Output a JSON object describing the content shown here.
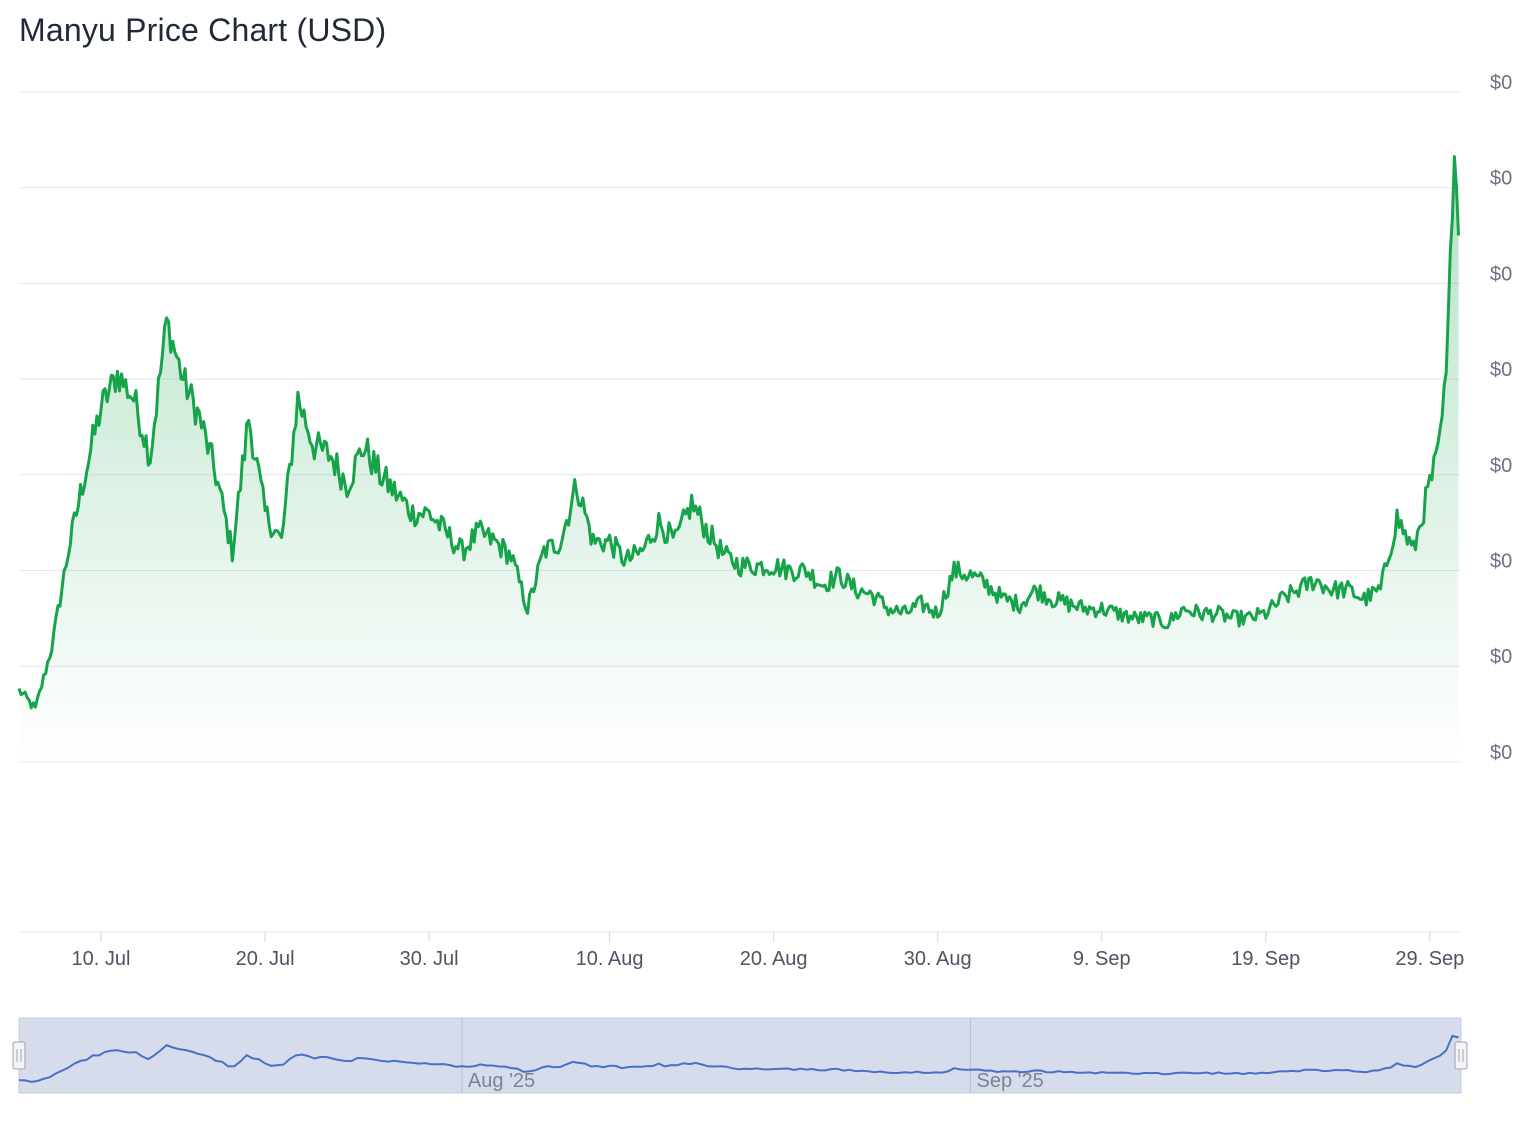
{
  "title": "Manyu Price Chart (USD)",
  "colors": {
    "line": "#16a34a",
    "area_top": "#16a34a",
    "grid": "#e5e7eb",
    "navigator_fill": "#d6dcec",
    "navigator_line": "#4a6fc7",
    "navigator_border": "#c5cbe0"
  },
  "chart_data": {
    "type": "area",
    "title": "Manyu Price Chart (USD)",
    "xlabel": "",
    "ylabel": "",
    "x_range": [
      "2025-07-05",
      "2025-09-30"
    ],
    "x_ticks": [
      "10. Jul",
      "20. Jul",
      "30. Jul",
      "10. Aug",
      "20. Aug",
      "30. Aug",
      "9. Sep",
      "19. Sep",
      "29. Sep"
    ],
    "y_ticks": [
      "$0",
      "$0",
      "$0",
      "$0",
      "$0",
      "$0",
      "$0",
      "$0"
    ],
    "y_scale": "relative (tick values printed as $0)",
    "ylim": [
      0,
      7
    ],
    "grid": true,
    "legend": "none",
    "series": [
      {
        "values_note": "values in units of one y-grid step (bottom gridline = 0)",
        "points": [
          [
            "2025-07-05",
            0.75
          ],
          [
            "2025-07-06",
            0.55
          ],
          [
            "2025-07-07",
            1.2
          ],
          [
            "2025-07-08",
            2.2
          ],
          [
            "2025-07-09",
            3.0
          ],
          [
            "2025-07-10",
            3.7
          ],
          [
            "2025-07-11",
            4.05
          ],
          [
            "2025-07-12",
            3.8
          ],
          [
            "2025-07-13",
            3.2
          ],
          [
            "2025-07-14",
            4.6
          ],
          [
            "2025-07-15",
            4.0
          ],
          [
            "2025-07-16",
            3.6
          ],
          [
            "2025-07-17",
            3.0
          ],
          [
            "2025-07-18",
            2.2
          ],
          [
            "2025-07-19",
            3.6
          ],
          [
            "2025-07-20",
            2.6
          ],
          [
            "2025-07-21",
            2.3
          ],
          [
            "2025-07-22",
            3.8
          ],
          [
            "2025-07-23",
            3.3
          ],
          [
            "2025-07-24",
            3.2
          ],
          [
            "2025-07-25",
            2.9
          ],
          [
            "2025-07-26",
            3.3
          ],
          [
            "2025-07-27",
            3.0
          ],
          [
            "2025-07-28",
            2.8
          ],
          [
            "2025-07-29",
            2.6
          ],
          [
            "2025-07-30",
            2.6
          ],
          [
            "2025-07-31",
            2.4
          ],
          [
            "2025-08-01",
            2.2
          ],
          [
            "2025-08-02",
            2.4
          ],
          [
            "2025-08-03",
            2.3
          ],
          [
            "2025-08-04",
            2.15
          ],
          [
            "2025-08-05",
            1.6
          ],
          [
            "2025-08-06",
            2.2
          ],
          [
            "2025-08-07",
            2.3
          ],
          [
            "2025-08-08",
            2.9
          ],
          [
            "2025-08-09",
            2.3
          ],
          [
            "2025-08-10",
            2.3
          ],
          [
            "2025-08-11",
            2.1
          ],
          [
            "2025-08-12",
            2.2
          ],
          [
            "2025-08-13",
            2.5
          ],
          [
            "2025-08-14",
            2.3
          ],
          [
            "2025-08-15",
            2.7
          ],
          [
            "2025-08-16",
            2.4
          ],
          [
            "2025-08-17",
            2.15
          ],
          [
            "2025-08-18",
            2.05
          ],
          [
            "2025-08-19",
            2.05
          ],
          [
            "2025-08-20",
            2.05
          ],
          [
            "2025-08-21",
            2.0
          ],
          [
            "2025-08-22",
            2.0
          ],
          [
            "2025-08-23",
            1.85
          ],
          [
            "2025-08-24",
            1.95
          ],
          [
            "2025-08-25",
            1.8
          ],
          [
            "2025-08-26",
            1.75
          ],
          [
            "2025-08-27",
            1.6
          ],
          [
            "2025-08-28",
            1.55
          ],
          [
            "2025-08-29",
            1.65
          ],
          [
            "2025-08-30",
            1.55
          ],
          [
            "2025-08-31",
            2.0
          ],
          [
            "2025-09-01",
            1.95
          ],
          [
            "2025-09-02",
            1.85
          ],
          [
            "2025-09-03",
            1.7
          ],
          [
            "2025-09-04",
            1.65
          ],
          [
            "2025-09-05",
            1.8
          ],
          [
            "2025-09-06",
            1.7
          ],
          [
            "2025-09-07",
            1.65
          ],
          [
            "2025-09-08",
            1.6
          ],
          [
            "2025-09-09",
            1.6
          ],
          [
            "2025-09-10",
            1.55
          ],
          [
            "2025-09-11",
            1.5
          ],
          [
            "2025-09-12",
            1.5
          ],
          [
            "2025-09-13",
            1.45
          ],
          [
            "2025-09-14",
            1.6
          ],
          [
            "2025-09-15",
            1.55
          ],
          [
            "2025-09-16",
            1.55
          ],
          [
            "2025-09-17",
            1.5
          ],
          [
            "2025-09-18",
            1.5
          ],
          [
            "2025-09-19",
            1.55
          ],
          [
            "2025-09-20",
            1.7
          ],
          [
            "2025-09-21",
            1.8
          ],
          [
            "2025-09-22",
            1.9
          ],
          [
            "2025-09-23",
            1.8
          ],
          [
            "2025-09-24",
            1.8
          ],
          [
            "2025-09-25",
            1.7
          ],
          [
            "2025-09-26",
            1.8
          ],
          [
            "2025-09-27",
            2.55
          ],
          [
            "2025-09-28",
            2.2
          ],
          [
            "2025-09-29",
            2.9
          ],
          [
            "2025-09-29T12",
            3.2
          ],
          [
            "2025-09-30",
            4.0
          ],
          [
            "2025-09-30T06",
            5.2
          ],
          [
            "2025-09-30T12",
            6.5
          ],
          [
            "2025-09-30T18",
            5.5
          ]
        ]
      }
    ]
  },
  "navigator": {
    "labels": [
      "Aug '25",
      "Sep '25"
    ]
  }
}
